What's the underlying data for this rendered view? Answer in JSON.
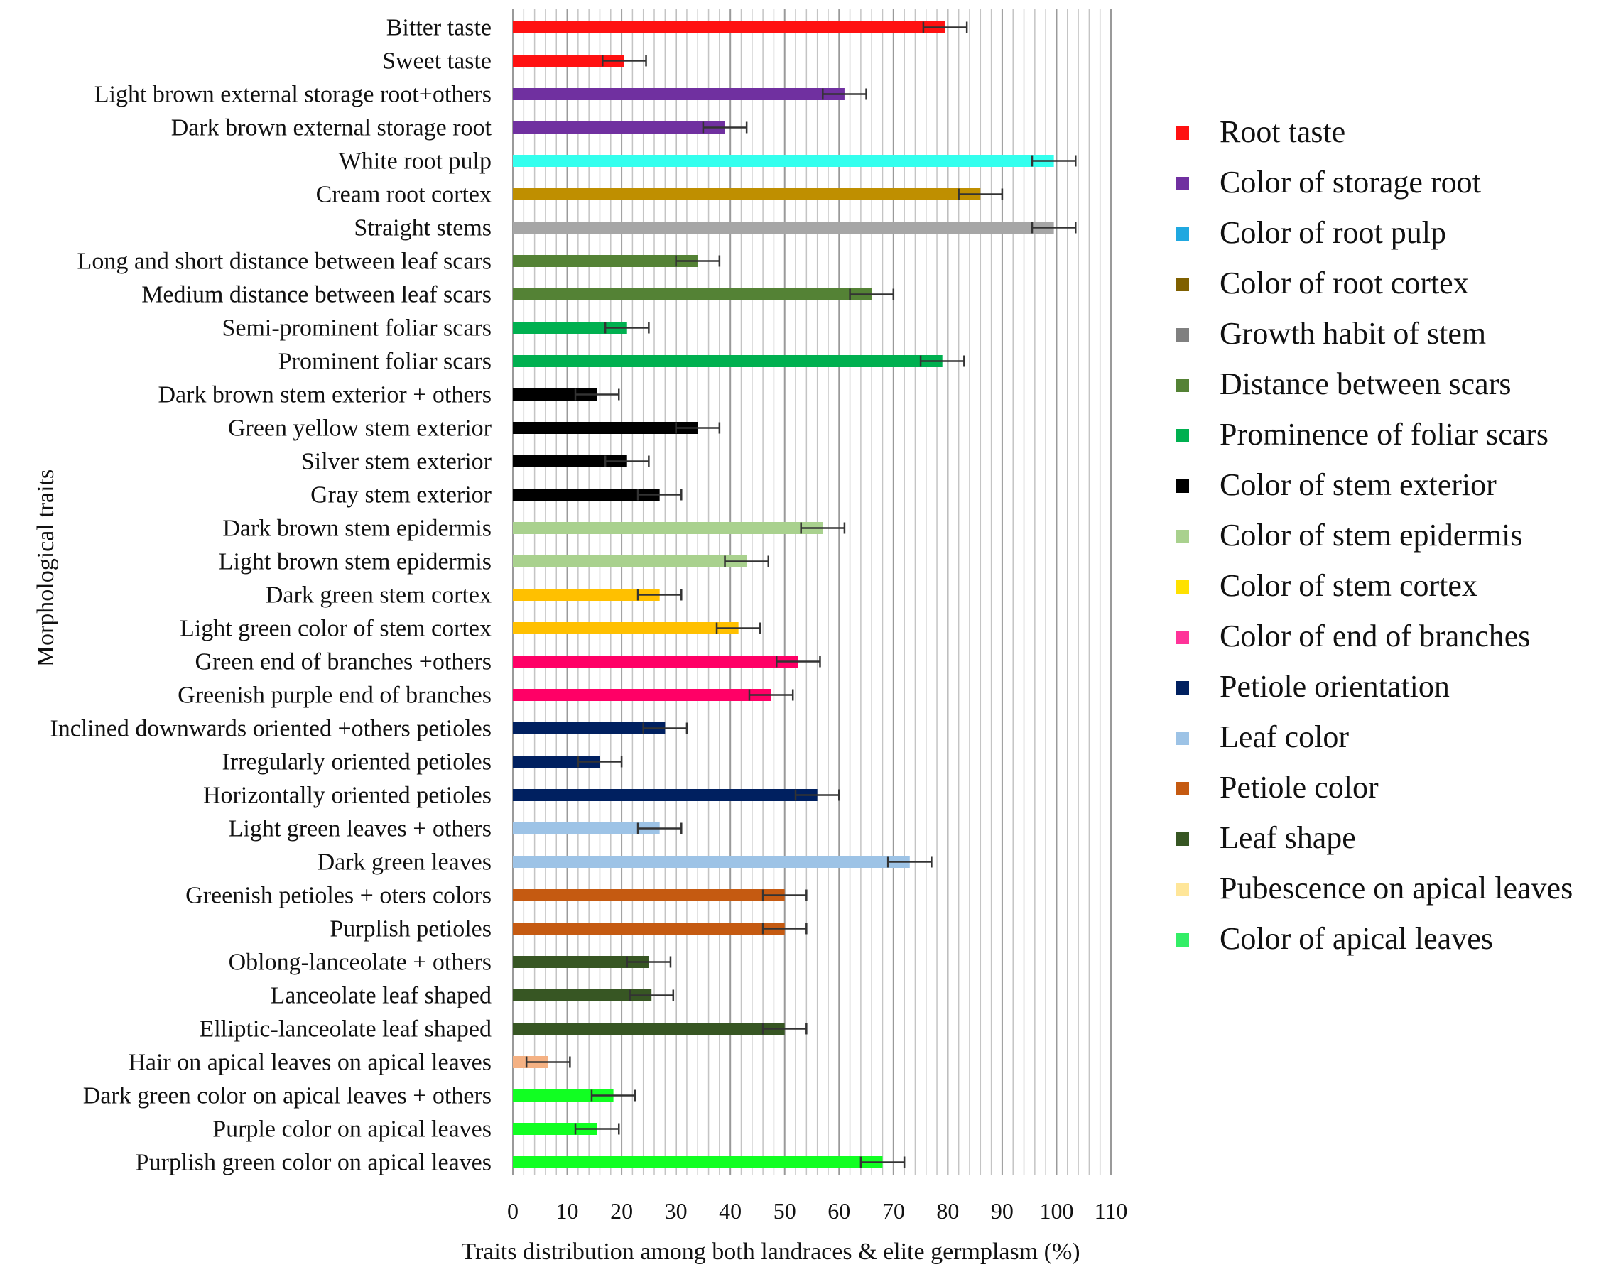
{
  "chart_data": {
    "type": "bar",
    "orientation": "horizontal",
    "xlabel": "Traits  distribution among both landraces &  elite germplasm (%)",
    "ylabel": "Morphological traits",
    "xlim": [
      0,
      110
    ],
    "xticks": [
      0,
      10,
      20,
      30,
      40,
      50,
      60,
      70,
      80,
      90,
      100,
      110
    ],
    "grid": "vertical, minor every 2",
    "legend_position": "right",
    "error_bars": true,
    "categories": [
      "Bitter taste",
      "Sweet taste",
      "Light brown external storage root+others",
      "Dark brown external storage root",
      "White root pulp",
      "Cream root cortex",
      "Straight stems",
      "Long and short distance between leaf scars",
      "Medium distance between leaf scars",
      "Semi-prominent foliar scars",
      "Prominent foliar scars",
      "Dark brown stem exterior + others",
      "Green yellow stem exterior",
      "Silver stem exterior",
      "Gray stem exterior",
      "Dark brown stem epidermis",
      "Light brown stem epidermis",
      "Dark green  stem cortex",
      "Light green color of stem cortex",
      "Green end of branches +others",
      "Greenish purple end of branches",
      "Inclined downwards  oriented +others petioles",
      "Irregularly oriented petioles",
      "Horizontally oriented petioles",
      "Light green leaves + others",
      "Dark green leaves",
      "Greenish petioles + oters colors",
      "Purplish petioles",
      "Oblong-lanceolate + others",
      "Lanceolate leaf shaped",
      "Elliptic-lanceolate leaf shaped",
      "Hair on apical leaves on apical leaves",
      "Dark green color on apical leaves + others",
      "Purple color on apical leaves",
      "Purplish green color on apical leaves"
    ],
    "values": [
      79.5,
      20.5,
      61,
      39,
      99.5,
      86,
      99.5,
      34,
      66,
      21,
      79,
      15.5,
      34,
      21,
      27,
      57,
      43,
      27,
      41.5,
      52.5,
      47.5,
      28,
      16,
      56,
      27,
      73,
      50,
      50,
      25,
      25.5,
      50,
      6.5,
      18.5,
      15.5,
      68
    ],
    "errors": [
      4,
      4,
      4,
      4,
      4,
      4,
      4,
      4,
      4,
      4,
      4,
      4,
      4,
      4,
      4,
      4,
      4,
      4,
      4,
      4,
      4,
      4,
      4,
      4,
      4,
      4,
      4,
      4,
      4,
      4,
      4,
      4,
      4,
      4,
      4
    ],
    "groups": [
      0,
      0,
      1,
      1,
      2,
      3,
      4,
      5,
      5,
      6,
      6,
      7,
      7,
      7,
      7,
      8,
      8,
      9,
      9,
      10,
      10,
      11,
      11,
      11,
      12,
      12,
      13,
      13,
      14,
      14,
      14,
      15,
      16,
      16,
      16
    ],
    "bar_colors": [
      "#ff1111",
      "#ff1111",
      "#7030a0",
      "#7030a0",
      "#33ffee",
      "#bf8f00",
      "#a6a6a6",
      "#548235",
      "#548235",
      "#00b050",
      "#00b050",
      "#000000",
      "#000000",
      "#000000",
      "#000000",
      "#a9d18e",
      "#a9d18e",
      "#ffc000",
      "#ffc000",
      "#ff0066",
      "#ff0066",
      "#002060",
      "#002060",
      "#002060",
      "#9dc3e6",
      "#9dc3e6",
      "#c55a11",
      "#c55a11",
      "#375623",
      "#375623",
      "#375623",
      "#f4b183",
      "#11ff22",
      "#11ff22",
      "#11ff22"
    ],
    "legend": [
      {
        "label": "Root taste",
        "color": "#ff1111"
      },
      {
        "label": "Color of storage root",
        "color": "#7030a0"
      },
      {
        "label": "Color of root pulp",
        "color": "#20a8e0"
      },
      {
        "label": "Color of root cortex",
        "color": "#7f6000"
      },
      {
        "label": "Growth habit of stem",
        "color": "#808080"
      },
      {
        "label": "Distance between scars",
        "color": "#548235"
      },
      {
        "label": "Prominence of foliar scars",
        "color": "#00b050"
      },
      {
        "label": "Color of stem exterior",
        "color": "#000000"
      },
      {
        "label": "Color of stem epidermis",
        "color": "#a9d18e"
      },
      {
        "label": "Color of stem cortex",
        "color": "#ffe100"
      },
      {
        "label": "Color of end of branches",
        "color": "#ff3399"
      },
      {
        "label": "Petiole orientation",
        "color": "#002060"
      },
      {
        "label": "Leaf color",
        "color": "#9dc3e6"
      },
      {
        "label": "Petiole color",
        "color": "#c55a11"
      },
      {
        "label": "Leaf shape",
        "color": "#375623"
      },
      {
        "label": "Pubescence on apical leaves",
        "color": "#ffe699"
      },
      {
        "label": "Color of apical leaves",
        "color": "#33ee66"
      }
    ]
  }
}
